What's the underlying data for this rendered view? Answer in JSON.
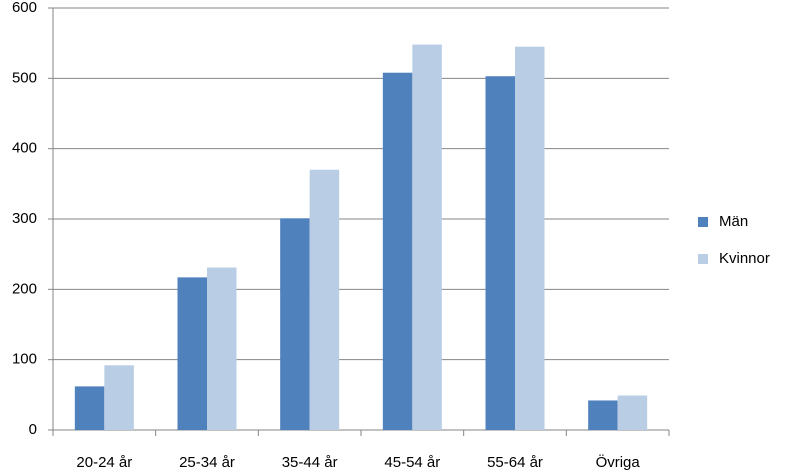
{
  "chart_data": {
    "type": "bar",
    "categories": [
      "20-24 år",
      "25-34 år",
      "35-44 år",
      "45-54 år",
      "55-64 år",
      "Övriga"
    ],
    "series": [
      {
        "name": "Män",
        "color": "#4f81bd",
        "values": [
          62,
          217,
          301,
          508,
          503,
          42
        ]
      },
      {
        "name": "Kvinnor",
        "color": "#b9cde5",
        "values": [
          92,
          231,
          370,
          548,
          545,
          49
        ]
      }
    ],
    "ylim": [
      0,
      600
    ],
    "yticks": [
      0,
      100,
      200,
      300,
      400,
      500,
      600
    ],
    "grid": true,
    "legend": "right"
  }
}
